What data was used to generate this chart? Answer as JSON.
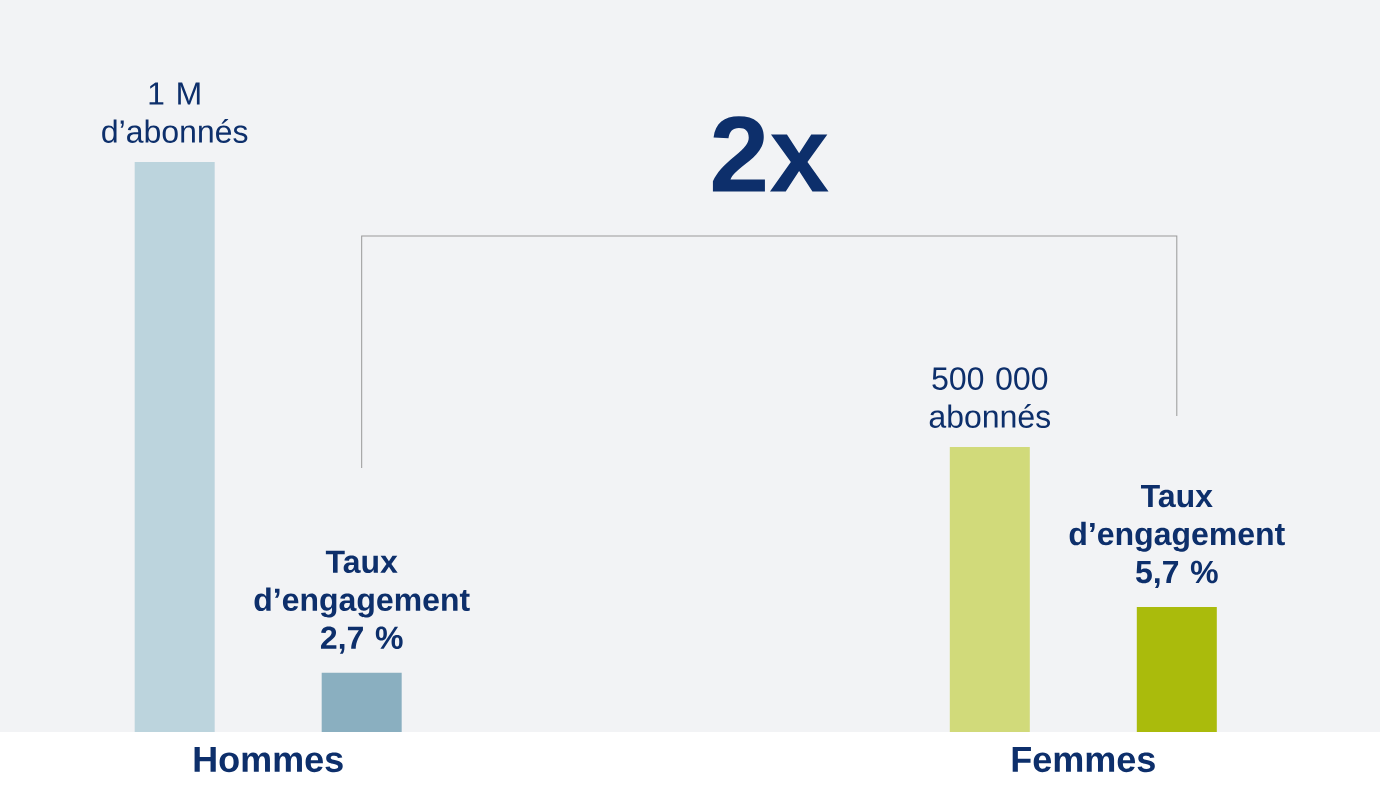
{
  "chart_data": {
    "type": "bar",
    "categories": [
      "Hommes",
      "Femmes"
    ],
    "series": [
      {
        "colors": [
          "#bcd4dd",
          "#d1da7a"
        ],
        "values": [
          1000000,
          500000
        ],
        "value_labels": [
          "1 M d’abonnés",
          "500 000 abonnés"
        ]
      },
      {
        "axis": "y2",
        "colors": [
          "#8aafc0",
          "#aabb0c"
        ],
        "values": [
          2.7,
          5.7
        ],
        "value_labels": [
          "Taux d’engagement 2,7 %",
          "Taux d’engagement 5,7 %"
        ]
      }
    ],
    "annotations": [
      "2x"
    ]
  }
}
